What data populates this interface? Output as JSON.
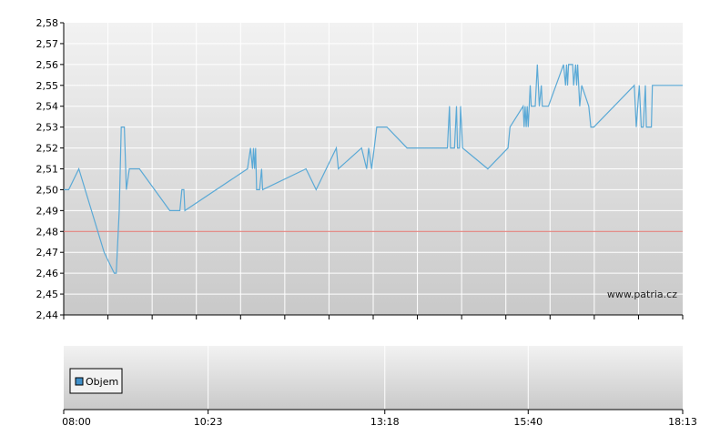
{
  "watermark": "www.patria.cz",
  "colors": {
    "price_line": "#5aa9d6",
    "reference_line": "#e0706a",
    "grid": "#ffffff",
    "plot_top": "#f2f2f2",
    "plot_bottom": "#c9c9c9",
    "legend_swatch": "#3f8fc9"
  },
  "chart_data": [
    {
      "type": "line",
      "x_unit": "time of day",
      "ylim": [
        2.44,
        2.58
      ],
      "y_ticks": [
        "2,58",
        "2,57",
        "2,56",
        "2,55",
        "2,54",
        "2,53",
        "2,52",
        "2,51",
        "2,50",
        "2,49",
        "2,48",
        "2,47",
        "2,46",
        "2,45",
        "2,44"
      ],
      "grid": true,
      "reference_line": 2.48,
      "series": [
        {
          "points": [
            [
              "08:00",
              2.5
            ],
            [
              "08:05",
              2.5
            ],
            [
              "08:15",
              2.51
            ],
            [
              "08:40",
              2.47
            ],
            [
              "08:50",
              2.46
            ],
            [
              "08:52",
              2.46
            ],
            [
              "08:55",
              2.49
            ],
            [
              "08:57",
              2.53
            ],
            [
              "09:00",
              2.53
            ],
            [
              "09:02",
              2.5
            ],
            [
              "09:05",
              2.51
            ],
            [
              "09:15",
              2.51
            ],
            [
              "09:45",
              2.49
            ],
            [
              "09:55",
              2.49
            ],
            [
              "09:57",
              2.5
            ],
            [
              "09:59",
              2.5
            ],
            [
              "10:00",
              2.49
            ],
            [
              "11:02",
              2.51
            ],
            [
              "11:05",
              2.52
            ],
            [
              "11:07",
              2.51
            ],
            [
              "11:08",
              2.52
            ],
            [
              "11:09",
              2.51
            ],
            [
              "11:10",
              2.52
            ],
            [
              "11:11",
              2.5
            ],
            [
              "11:14",
              2.5
            ],
            [
              "11:16",
              2.51
            ],
            [
              "11:17",
              2.5
            ],
            [
              "12:00",
              2.51
            ],
            [
              "12:10",
              2.5
            ],
            [
              "12:30",
              2.52
            ],
            [
              "12:32",
              2.51
            ],
            [
              "12:55",
              2.52
            ],
            [
              "13:00",
              2.51
            ],
            [
              "13:02",
              2.52
            ],
            [
              "13:05",
              2.51
            ],
            [
              "13:10",
              2.53
            ],
            [
              "13:20",
              2.53
            ],
            [
              "13:40",
              2.52
            ],
            [
              "14:20",
              2.52
            ],
            [
              "14:22",
              2.54
            ],
            [
              "14:23",
              2.52
            ],
            [
              "14:27",
              2.52
            ],
            [
              "14:29",
              2.54
            ],
            [
              "14:30",
              2.52
            ],
            [
              "14:32",
              2.52
            ],
            [
              "14:33",
              2.54
            ],
            [
              "14:35",
              2.52
            ],
            [
              "15:00",
              2.51
            ],
            [
              "15:20",
              2.52
            ],
            [
              "15:22",
              2.53
            ],
            [
              "15:35",
              2.54
            ],
            [
              "15:36",
              2.53
            ],
            [
              "15:37",
              2.54
            ],
            [
              "15:38",
              2.53
            ],
            [
              "15:39",
              2.54
            ],
            [
              "15:40",
              2.53
            ],
            [
              "15:42",
              2.55
            ],
            [
              "15:43",
              2.54
            ],
            [
              "15:47",
              2.54
            ],
            [
              "15:49",
              2.56
            ],
            [
              "15:51",
              2.54
            ],
            [
              "15:53",
              2.55
            ],
            [
              "15:54",
              2.54
            ],
            [
              "16:00",
              2.54
            ],
            [
              "16:15",
              2.56
            ],
            [
              "16:17",
              2.55
            ],
            [
              "16:18",
              2.56
            ],
            [
              "16:19",
              2.55
            ],
            [
              "16:20",
              2.56
            ],
            [
              "16:24",
              2.56
            ],
            [
              "16:25",
              2.55
            ],
            [
              "16:27",
              2.56
            ],
            [
              "16:28",
              2.55
            ],
            [
              "16:29",
              2.56
            ],
            [
              "16:31",
              2.54
            ],
            [
              "16:33",
              2.55
            ],
            [
              "16:40",
              2.54
            ],
            [
              "16:42",
              2.53
            ],
            [
              "16:45",
              2.53
            ],
            [
              "17:25",
              2.55
            ],
            [
              "17:27",
              2.53
            ],
            [
              "17:30",
              2.55
            ],
            [
              "17:32",
              2.53
            ],
            [
              "17:34",
              2.53
            ],
            [
              "17:36",
              2.55
            ],
            [
              "17:37",
              2.53
            ],
            [
              "17:42",
              2.53
            ],
            [
              "17:43",
              2.55
            ],
            [
              "18:13",
              2.55
            ]
          ]
        }
      ]
    },
    {
      "type": "bar",
      "legend": [
        "Objem"
      ],
      "legend_position": "top-left",
      "x_ticks": [
        "08:00",
        "10:23",
        "13:18",
        "15:40",
        "18:13"
      ],
      "x_range": [
        "08:00",
        "18:13"
      ],
      "grid": true,
      "values": []
    }
  ]
}
